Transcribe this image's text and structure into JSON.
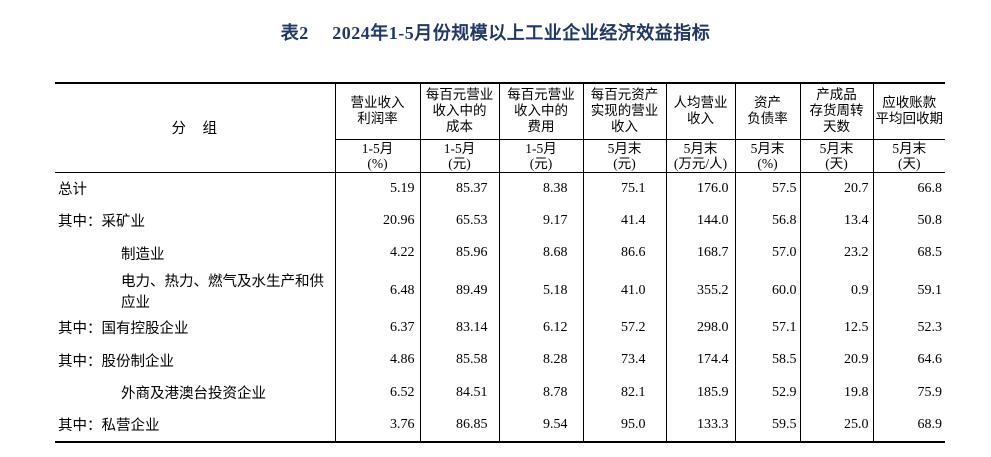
{
  "title": "表2　 2024年1-5月份规模以上工业企业经济效益指标",
  "colors": {
    "title_text": "#1f3864",
    "table_border": "#000000",
    "body_text": "#000000",
    "background": "#ffffff"
  },
  "table": {
    "group_header": "分　组",
    "columns": [
      {
        "name": "营业收入\n利润率",
        "period": "1-5月",
        "unit": "(%)"
      },
      {
        "name": "每百元营业\n收入中的\n成本",
        "period": "1-5月",
        "unit": "(元)"
      },
      {
        "name": "每百元营业\n收入中的\n费用",
        "period": "1-5月",
        "unit": "(元)"
      },
      {
        "name": "每百元资产\n实现的营业\n收入",
        "period": "5月末",
        "unit": "(元)"
      },
      {
        "name": "人均营业\n收入",
        "period": "5月末",
        "unit": "(万元/人)"
      },
      {
        "name": "资产\n负债率",
        "period": "5月末",
        "unit": "(%)"
      },
      {
        "name": "产成品\n存货周转\n天数",
        "period": "5月末",
        "unit": "(天)"
      },
      {
        "name": "应收账款\n平均回收期",
        "period": "5月末",
        "unit": "(天)"
      }
    ],
    "rows": [
      {
        "label": "总计",
        "values": [
          "5.19",
          "85.37",
          "8.38",
          "75.1",
          "176.0",
          "57.5",
          "20.7",
          "66.8"
        ]
      },
      {
        "label": "其中：采矿业",
        "values": [
          "20.96",
          "65.53",
          "9.17",
          "41.4",
          "144.0",
          "56.8",
          "13.4",
          "50.8"
        ]
      },
      {
        "label": "制造业",
        "values": [
          "4.22",
          "85.96",
          "8.68",
          "86.6",
          "168.7",
          "57.0",
          "23.2",
          "68.5"
        ]
      },
      {
        "label": "电力、热力、燃气及水生产和供应业",
        "values": [
          "6.48",
          "89.49",
          "5.18",
          "41.0",
          "355.2",
          "60.0",
          "0.9",
          "59.1"
        ]
      },
      {
        "label": "其中：国有控股企业",
        "values": [
          "6.37",
          "83.14",
          "6.12",
          "57.2",
          "298.0",
          "57.1",
          "12.5",
          "52.3"
        ]
      },
      {
        "label": "其中：股份制企业",
        "values": [
          "4.86",
          "85.58",
          "8.28",
          "73.4",
          "174.4",
          "58.5",
          "20.9",
          "64.6"
        ]
      },
      {
        "label": "外商及港澳台投资企业",
        "values": [
          "6.52",
          "84.51",
          "8.78",
          "82.1",
          "185.9",
          "52.9",
          "19.8",
          "75.9"
        ]
      },
      {
        "label": "其中：私营企业",
        "values": [
          "3.76",
          "86.85",
          "9.54",
          "95.0",
          "133.3",
          "59.5",
          "25.0",
          "68.9"
        ]
      }
    ]
  }
}
